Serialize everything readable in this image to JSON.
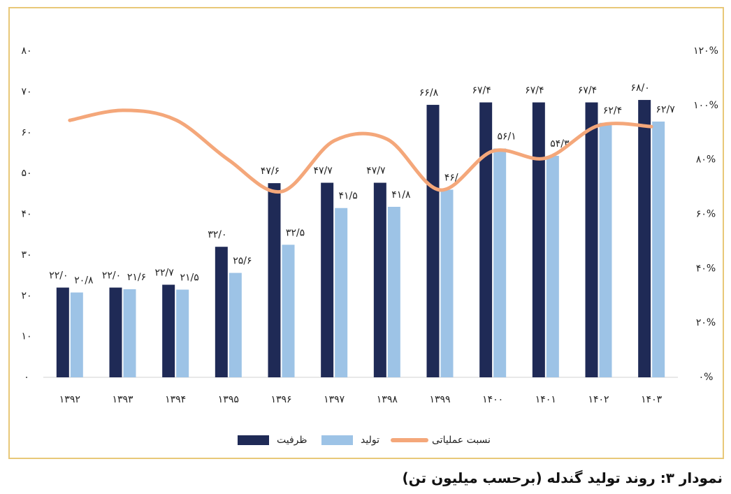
{
  "chart_data": {
    "type": "bar-line",
    "title": "نمودار ۳: روند تولید گندله (برحسب میلیون تن)",
    "categories": [
      "۱۳۹۲",
      "۱۳۹۳",
      "۱۳۹۴",
      "۱۳۹۵",
      "۱۳۹۶",
      "۱۳۹۷",
      "۱۳۹۸",
      "۱۳۹۹",
      "۱۴۰۰",
      "۱۴۰۱",
      "۱۴۰۲",
      "۱۴۰۳"
    ],
    "series": [
      {
        "name": "ظرفیت",
        "type": "bar",
        "color": "#1f2a56",
        "values": [
          22.0,
          22.0,
          22.7,
          32.0,
          47.6,
          47.7,
          47.7,
          66.8,
          67.4,
          67.4,
          67.4,
          68.0
        ],
        "value_labels": [
          "۲۲/۰",
          "۲۲/۰",
          "۲۲/۷",
          "۳۲/۰",
          "۴۷/۶",
          "۴۷/۷",
          "۴۷/۷",
          "۶۶/۸",
          "۶۷/۴",
          "۶۷/۴",
          "۶۷/۴",
          "۶۸/۰"
        ]
      },
      {
        "name": "تولید",
        "type": "bar",
        "color": "#9dc3e6",
        "values": [
          20.8,
          21.6,
          21.5,
          25.6,
          32.5,
          41.5,
          41.8,
          46.0,
          56.1,
          54.3,
          62.4,
          62.7
        ],
        "value_labels": [
          "۲۰/۸",
          "۲۱/۶",
          "۲۱/۵",
          "۲۵/۶",
          "۳۲/۵",
          "۴۱/۵",
          "۴۱/۸",
          "۴۶/۰",
          "۵۶/۱",
          "۵۴/۳",
          "۶۲/۴",
          "۶۲/۷"
        ]
      },
      {
        "name": "نسبت عملیاتی",
        "type": "line",
        "axis": "y2",
        "color": "#f4a77a",
        "values": [
          94.5,
          98.2,
          94.7,
          80,
          68.3,
          87,
          87.6,
          68.9,
          83.2,
          80.6,
          92.6,
          92.2
        ]
      }
    ],
    "ylim": [
      0,
      80
    ],
    "yticks": [
      {
        "value": 0,
        "label": "۰"
      },
      {
        "value": 10,
        "label": "۱۰"
      },
      {
        "value": 20,
        "label": "۲۰"
      },
      {
        "value": 30,
        "label": "۳۰"
      },
      {
        "value": 40,
        "label": "۴۰"
      },
      {
        "value": 50,
        "label": "۵۰"
      },
      {
        "value": 60,
        "label": "۶۰"
      },
      {
        "value": 70,
        "label": "۷۰"
      },
      {
        "value": 80,
        "label": "۸۰"
      }
    ],
    "y2lim": [
      0,
      120
    ],
    "y2ticks": [
      {
        "value": 0,
        "label": "۰%"
      },
      {
        "value": 20,
        "label": "۲۰%"
      },
      {
        "value": 40,
        "label": "۴۰%"
      },
      {
        "value": 60,
        "label": "۶۰%"
      },
      {
        "value": 80,
        "label": "۸۰%"
      },
      {
        "value": 100,
        "label": "۱۰۰%"
      },
      {
        "value": 120,
        "label": "۱۲۰%"
      }
    ],
    "legend": "bottom"
  }
}
